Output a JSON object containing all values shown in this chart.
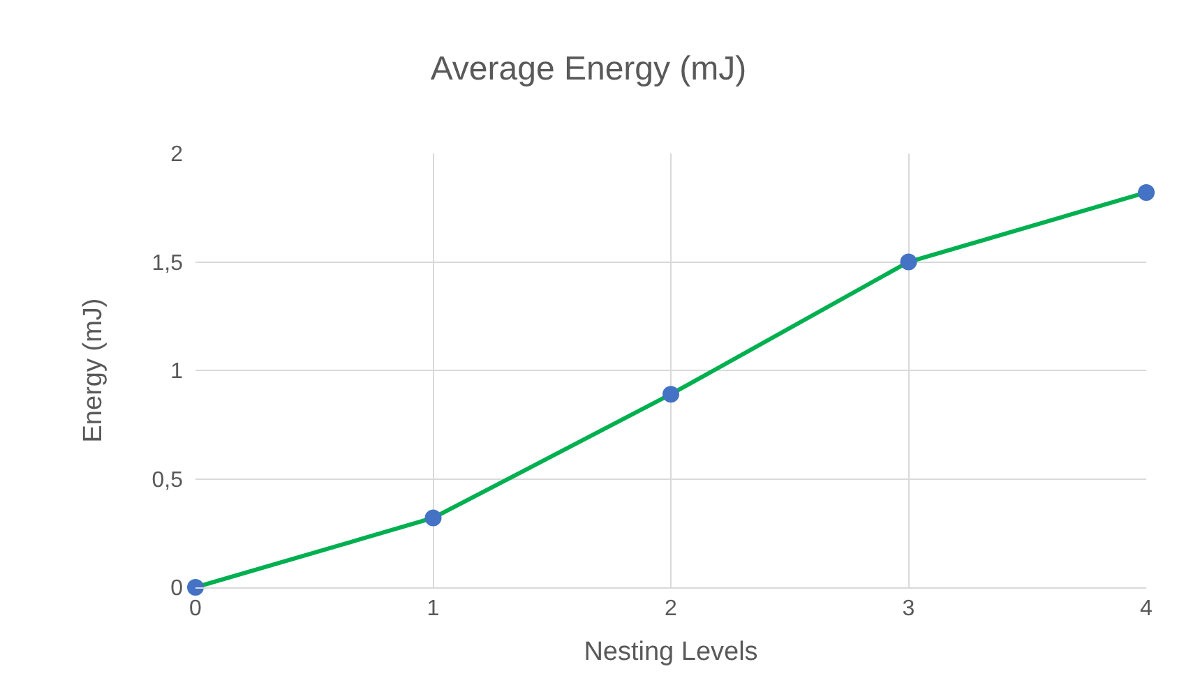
{
  "chart_data": {
    "type": "line",
    "title": "Average Energy (mJ)",
    "xlabel": "Nesting Levels",
    "ylabel": "Energy (mJ)",
    "x": [
      0,
      1,
      2,
      3,
      4
    ],
    "series": [
      {
        "color": "#00b050",
        "colors": [
          "#4472c4",
          "#4472c4",
          "#4472c4",
          "#4472c4",
          "#4472c4"
        ],
        "values": [
          0,
          0.32,
          0.89,
          1.5,
          1.82
        ]
      }
    ],
    "xlim": [
      0,
      4
    ],
    "xticks": [
      0,
      1,
      2,
      3,
      4
    ],
    "ylim": [
      0,
      2
    ],
    "yticks": [
      0,
      {
        "value": 0.5,
        "label": "0,5"
      },
      1,
      {
        "value": 1.5,
        "label": "1,5"
      },
      2
    ],
    "grid": true,
    "marker": "circle",
    "line_style": "solid"
  }
}
